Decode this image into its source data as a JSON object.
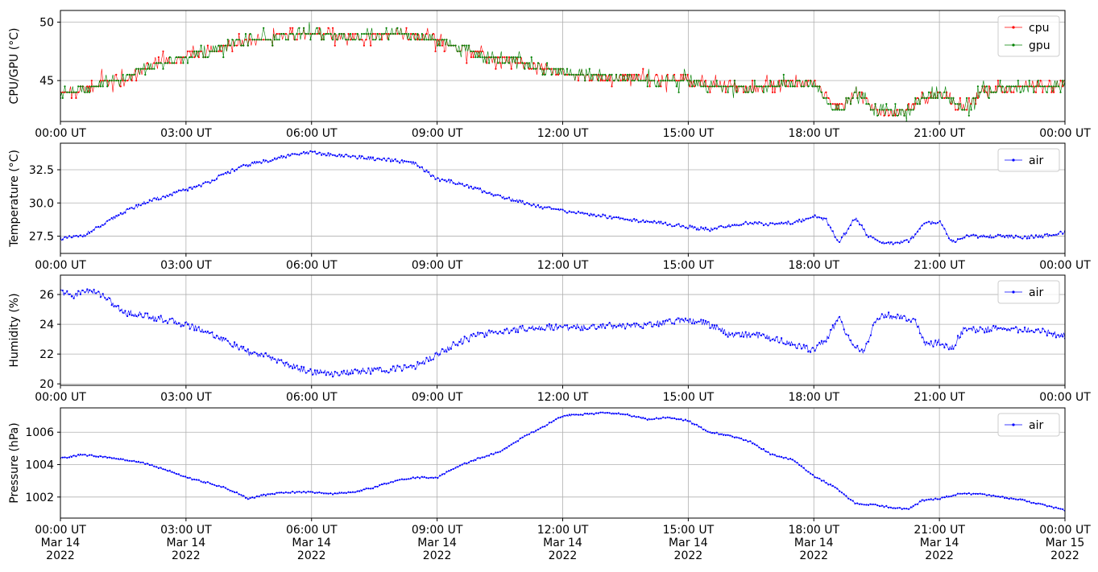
{
  "chart_data": [
    {
      "type": "line",
      "ylabel": "CPU/GPU (°C)",
      "ylim": [
        41.5,
        51.0
      ],
      "yticks": [
        45,
        50
      ],
      "ytick_labels": [
        "45",
        "50"
      ],
      "grid": true,
      "legend_position": "upper-right",
      "x_range_hours": [
        0,
        24
      ],
      "xtick_hours": [
        0,
        3,
        6,
        9,
        12,
        15,
        18,
        21,
        24
      ],
      "xtick_labels": [
        "00:00 UT",
        "03:00 UT",
        "06:00 UT",
        "09:00 UT",
        "12:00 UT",
        "15:00 UT",
        "18:00 UT",
        "21:00 UT",
        "00:00 UT"
      ],
      "series": [
        {
          "name": "cpu",
          "color": "#ff0000",
          "x": [
            0,
            0.5,
            1,
            1.5,
            2,
            2.5,
            3,
            3.5,
            4,
            4.5,
            5,
            5.5,
            6,
            6.5,
            7,
            7.5,
            8,
            8.5,
            9,
            9.5,
            10,
            10.5,
            11,
            11.5,
            12,
            12.5,
            13,
            13.5,
            14,
            14.5,
            15,
            15.5,
            16,
            16.5,
            17,
            17.5,
            18,
            18.3,
            18.6,
            19,
            19.5,
            20,
            20.3,
            20.6,
            21,
            21.3,
            21.6,
            22,
            22.5,
            23,
            23.5,
            24
          ],
          "values": [
            44,
            44,
            45,
            45,
            46,
            46.5,
            47,
            47.5,
            48,
            48.5,
            48.5,
            49,
            49,
            49,
            48.7,
            48.8,
            49,
            48.8,
            48.5,
            47.8,
            47.2,
            46.8,
            46.5,
            46,
            45.7,
            45.5,
            45.3,
            45.2,
            45,
            45,
            45,
            44.5,
            44.5,
            44.3,
            44.5,
            44.8,
            44.8,
            43.5,
            42.5,
            44,
            42.5,
            42.3,
            42.5,
            43.5,
            44,
            43.2,
            42.5,
            44,
            44.2,
            44.5,
            44.5,
            44.7
          ]
        },
        {
          "name": "gpu",
          "color": "#008000",
          "x": [
            0,
            0.5,
            1,
            1.5,
            2,
            2.5,
            3,
            3.5,
            4,
            4.5,
            5,
            5.5,
            6,
            6.5,
            7,
            7.5,
            8,
            8.5,
            9,
            9.5,
            10,
            10.5,
            11,
            11.5,
            12,
            12.5,
            13,
            13.5,
            14,
            14.5,
            15,
            15.5,
            16,
            16.5,
            17,
            17.5,
            18,
            18.3,
            18.6,
            19,
            19.5,
            20,
            20.3,
            20.6,
            21,
            21.3,
            21.6,
            22,
            22.5,
            23,
            23.5,
            24
          ],
          "values": [
            44,
            44,
            45,
            45,
            46,
            46.5,
            47,
            47.5,
            48,
            48.5,
            48.5,
            49,
            49,
            49,
            48.7,
            48.8,
            49,
            48.8,
            48.5,
            47.8,
            47.2,
            46.8,
            46.5,
            46,
            45.7,
            45.5,
            45.3,
            45.2,
            45,
            45,
            45,
            44.5,
            44.5,
            44.3,
            44.5,
            44.8,
            44.8,
            43.5,
            42.5,
            44,
            42.5,
            42.3,
            42.5,
            43.5,
            44,
            43.2,
            42.5,
            44,
            44.2,
            44.5,
            44.5,
            44.7
          ]
        }
      ]
    },
    {
      "type": "line",
      "ylabel": "Temperature (°C)",
      "ylim": [
        26.2,
        34.5
      ],
      "yticks": [
        27.5,
        30.0,
        32.5
      ],
      "ytick_labels": [
        "27.5",
        "30.0",
        "32.5"
      ],
      "grid": true,
      "legend_position": "upper-right",
      "x_range_hours": [
        0,
        24
      ],
      "xtick_hours": [
        0,
        3,
        6,
        9,
        12,
        15,
        18,
        21,
        24
      ],
      "xtick_labels": [
        "00:00 UT",
        "03:00 UT",
        "06:00 UT",
        "09:00 UT",
        "12:00 UT",
        "15:00 UT",
        "18:00 UT",
        "21:00 UT",
        "00:00 UT"
      ],
      "series": [
        {
          "name": "air",
          "color": "#0000ff",
          "x": [
            0,
            0.5,
            1,
            1.5,
            2,
            2.5,
            3,
            3.5,
            4,
            4.5,
            5,
            5.5,
            6,
            6.5,
            7,
            7.5,
            8,
            8.5,
            9,
            9.5,
            10,
            10.5,
            11,
            11.5,
            12,
            12.5,
            13,
            13.5,
            14,
            14.5,
            15,
            15.5,
            16,
            16.5,
            17,
            17.5,
            18,
            18.3,
            18.6,
            19,
            19.3,
            19.6,
            20,
            20.3,
            20.6,
            21,
            21.3,
            21.6,
            22,
            22.5,
            23,
            23.5,
            24
          ],
          "values": [
            27.3,
            27.5,
            28.3,
            29.3,
            30,
            30.5,
            31,
            31.5,
            32.3,
            32.9,
            33.2,
            33.6,
            33.8,
            33.6,
            33.5,
            33.3,
            33.2,
            32.9,
            31.8,
            31.5,
            31,
            30.5,
            30.1,
            29.7,
            29.4,
            29.2,
            29,
            28.8,
            28.6,
            28.4,
            28.2,
            28,
            28.3,
            28.5,
            28.4,
            28.5,
            29,
            28.7,
            27,
            28.9,
            27.5,
            27,
            27,
            27.2,
            28.4,
            28.6,
            27,
            27.5,
            27.5,
            27.5,
            27.4,
            27.5,
            27.8
          ]
        }
      ]
    },
    {
      "type": "line",
      "ylabel": "Humidity (%)",
      "ylim": [
        19.9,
        27.3
      ],
      "yticks": [
        20,
        22,
        24,
        26
      ],
      "ytick_labels": [
        "20",
        "22",
        "24",
        "26"
      ],
      "grid": true,
      "legend_position": "upper-right",
      "x_range_hours": [
        0,
        24
      ],
      "xtick_hours": [
        0,
        3,
        6,
        9,
        12,
        15,
        18,
        21,
        24
      ],
      "xtick_labels": [
        "00:00 UT",
        "03:00 UT",
        "06:00 UT",
        "09:00 UT",
        "12:00 UT",
        "15:00 UT",
        "18:00 UT",
        "21:00 UT",
        "00:00 UT"
      ],
      "series": [
        {
          "name": "air",
          "color": "#0000ff",
          "x": [
            0,
            0.3,
            0.6,
            1,
            1.5,
            2,
            2.5,
            3,
            3.5,
            4,
            4.5,
            5,
            5.5,
            6,
            6.5,
            7,
            7.5,
            8,
            8.5,
            9,
            9.5,
            10,
            10.5,
            11,
            11.5,
            12,
            12.5,
            13,
            13.5,
            14,
            14.5,
            15,
            15.5,
            16,
            16.5,
            17,
            17.5,
            18,
            18.3,
            18.6,
            18.9,
            19.2,
            19.5,
            19.8,
            20.1,
            20.4,
            20.7,
            21,
            21.3,
            21.6,
            22,
            22.5,
            23,
            23.5,
            24
          ],
          "values": [
            26.2,
            25.9,
            26.3,
            26,
            24.8,
            24.6,
            24.3,
            24,
            23.5,
            22.8,
            22.1,
            21.8,
            21.2,
            20.8,
            20.7,
            20.8,
            20.9,
            21,
            21.2,
            22,
            22.8,
            23.3,
            23.5,
            23.7,
            23.8,
            23.8,
            23.8,
            23.9,
            23.9,
            23.9,
            24.2,
            24.3,
            24,
            23.3,
            23.3,
            23.1,
            22.6,
            22.3,
            23,
            24.5,
            22.6,
            22.2,
            24.4,
            24.6,
            24.4,
            24.3,
            22.6,
            22.8,
            22.4,
            23.8,
            23.6,
            23.8,
            23.6,
            23.5,
            23.2
          ]
        }
      ]
    },
    {
      "type": "line",
      "ylabel": "Pressure (hPa)",
      "ylim": [
        1000.7,
        1007.5
      ],
      "yticks": [
        1002,
        1004,
        1006
      ],
      "ytick_labels": [
        "1002",
        "1004",
        "1006"
      ],
      "grid": true,
      "legend_position": "upper-right",
      "x_range_hours": [
        0,
        24
      ],
      "xtick_hours": [
        0,
        3,
        6,
        9,
        12,
        15,
        18,
        21,
        24
      ],
      "xtick_labels": [
        "00:00 UT\nMar 14\n2022",
        "03:00 UT\nMar 14\n2022",
        "06:00 UT\nMar 14\n2022",
        "09:00 UT\nMar 14\n2022",
        "12:00 UT\nMar 14\n2022",
        "15:00 UT\nMar 14\n2022",
        "18:00 UT\nMar 14\n2022",
        "21:00 UT\nMar 14\n2022",
        "00:00 UT\nMar 15\n2022"
      ],
      "series": [
        {
          "name": "air",
          "color": "#0000ff",
          "x": [
            0,
            0.5,
            1,
            1.5,
            2,
            2.5,
            3,
            3.5,
            4,
            4.5,
            5,
            5.5,
            6,
            6.5,
            7,
            7.5,
            8,
            8.5,
            9,
            9.5,
            10,
            10.5,
            11,
            11.5,
            12,
            12.5,
            13,
            13.5,
            14,
            14.5,
            15,
            15.5,
            16,
            16.5,
            17,
            17.5,
            18,
            18.5,
            19,
            19.5,
            20,
            20.3,
            20.6,
            21,
            21.5,
            22,
            22.5,
            23,
            23.5,
            24
          ],
          "values": [
            1004.4,
            1004.6,
            1004.5,
            1004.3,
            1004.1,
            1003.7,
            1003.2,
            1002.9,
            1002.5,
            1001.9,
            1002.2,
            1002.3,
            1002.3,
            1002.2,
            1002.3,
            1002.6,
            1003,
            1003.2,
            1003.2,
            1003.9,
            1004.4,
            1004.8,
            1005.6,
            1006.3,
            1007,
            1007.1,
            1007.2,
            1007.1,
            1006.8,
            1006.9,
            1006.7,
            1006,
            1005.8,
            1005.4,
            1004.6,
            1004.3,
            1003.3,
            1002.6,
            1001.6,
            1001.5,
            1001.3,
            1001.3,
            1001.8,
            1001.9,
            1002.2,
            1002.2,
            1002,
            1001.8,
            1001.5,
            1001.2
          ]
        }
      ]
    }
  ]
}
